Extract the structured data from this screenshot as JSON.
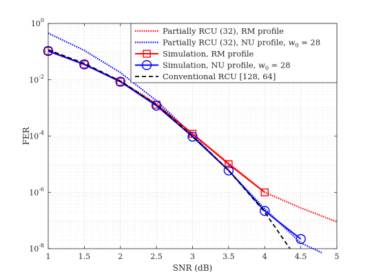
{
  "chart_data": {
    "type": "line",
    "title": "",
    "xlabel": "SNR (dB)",
    "ylabel": "FER",
    "xlim": [
      1,
      5
    ],
    "ylim": [
      1e-08,
      1
    ],
    "yscale": "log",
    "grid": true,
    "legend_position": "top-right",
    "x_ticks": [
      "1",
      "1.5",
      "2",
      "2.5",
      "3",
      "3.5",
      "4",
      "4.5",
      "5"
    ],
    "y_ticks": [
      {
        "base": "10",
        "exp": "0"
      },
      {
        "base": "10",
        "exp": "-2"
      },
      {
        "base": "10",
        "exp": "-4"
      },
      {
        "base": "10",
        "exp": "-6"
      },
      {
        "base": "10",
        "exp": "-8"
      }
    ],
    "series": [
      {
        "name": "Partially RCU (32), RM profile",
        "color": "#ff0000",
        "style": "dotted",
        "marker": "none",
        "x": [
          1,
          1.5,
          2,
          2.5,
          3,
          3.5,
          4,
          4.5,
          5
        ],
        "y": [
          0.11,
          0.036,
          0.009,
          0.0014,
          0.00012,
          1.1e-05,
          1e-06,
          2.8e-07,
          9e-08
        ]
      },
      {
        "name": "Partially RCU (32), NU profile, w₀ = 28",
        "color": "#0000ff",
        "style": "dotted",
        "marker": "none",
        "x": [
          1,
          1.5,
          2,
          2.5,
          3,
          3.5,
          4,
          4.5,
          4.8
        ],
        "y": [
          0.45,
          0.11,
          0.018,
          0.0018,
          0.00011,
          6e-06,
          2.6e-07,
          1.6e-08,
          7e-09
        ]
      },
      {
        "name": "Simulation, RM profile",
        "color": "#ff0000",
        "style": "solid",
        "marker": "square",
        "x": [
          1,
          1.5,
          2,
          2.5,
          3,
          3.5,
          4
        ],
        "y": [
          0.105,
          0.035,
          0.0085,
          0.0013,
          0.00012,
          1e-05,
          1e-06
        ]
      },
      {
        "name": "Simulation, NU profile, w₀ = 28",
        "color": "#0000ff",
        "style": "solid",
        "marker": "circle",
        "x": [
          1,
          1.5,
          2,
          2.5,
          3,
          3.5,
          4,
          4.5
        ],
        "y": [
          0.105,
          0.035,
          0.0085,
          0.0012,
          9.5e-05,
          6e-06,
          2.2e-07,
          2.2e-08
        ]
      },
      {
        "name": "Conventional RCU [128, 64]",
        "color": "#000000",
        "style": "dashed",
        "marker": "none",
        "x": [
          1,
          1.5,
          2,
          2.5,
          3,
          3.5,
          4,
          4.35
        ],
        "y": [
          0.115,
          0.038,
          0.009,
          0.0013,
          0.0001,
          6e-06,
          2e-07,
          1e-08
        ]
      }
    ],
    "legend_labels": [
      {
        "text": "Partially RCU (32), RM profile"
      },
      {
        "text": "Partially RCU (32), NU profile, ",
        "math": "w",
        "sub": "0",
        "tail": " = 28"
      },
      {
        "text": "Simulation, RM profile"
      },
      {
        "text": "Simulation, NU profile, ",
        "math": "w",
        "sub": "0",
        "tail": " = 28"
      },
      {
        "text": "Conventional RCU [128, 64]"
      }
    ]
  }
}
